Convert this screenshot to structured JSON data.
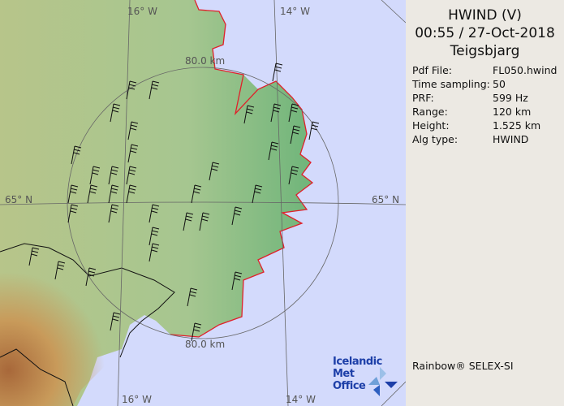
{
  "header": {
    "product": "HWIND (V)",
    "datetime": "00:55 / 27-Oct-2018",
    "site": "Teigsbjarg"
  },
  "info": [
    {
      "key": "Pdf File:",
      "value": "FL050.hwind"
    },
    {
      "key": "Time sampling:",
      "value": "50"
    },
    {
      "key": "PRF:",
      "value": "599 Hz"
    },
    {
      "key": "Range:",
      "value": "120 km"
    },
    {
      "key": "Height:",
      "value": "1.525 km"
    },
    {
      "key": "Alg type:",
      "value": "HWIND"
    }
  ],
  "credit": "Rainbow® SELEX-SI",
  "logo": {
    "line1": "Icelandic Met",
    "line2": "Office"
  },
  "map": {
    "lon_labels_top": [
      "16° W",
      "14° W"
    ],
    "lon_labels_bottom": [
      "16° W",
      "14° W"
    ],
    "lat_label_left": "65° N",
    "lat_label_right": "65° N",
    "range_label_top": "80.0 km",
    "range_label_bottom": "80.0 km",
    "colors": {
      "sea": "#d3dafc",
      "coastline": "#e0202a",
      "lowland": "#8cc08a",
      "highland": "#c08a50",
      "panel": "#ece9e3"
    }
  }
}
